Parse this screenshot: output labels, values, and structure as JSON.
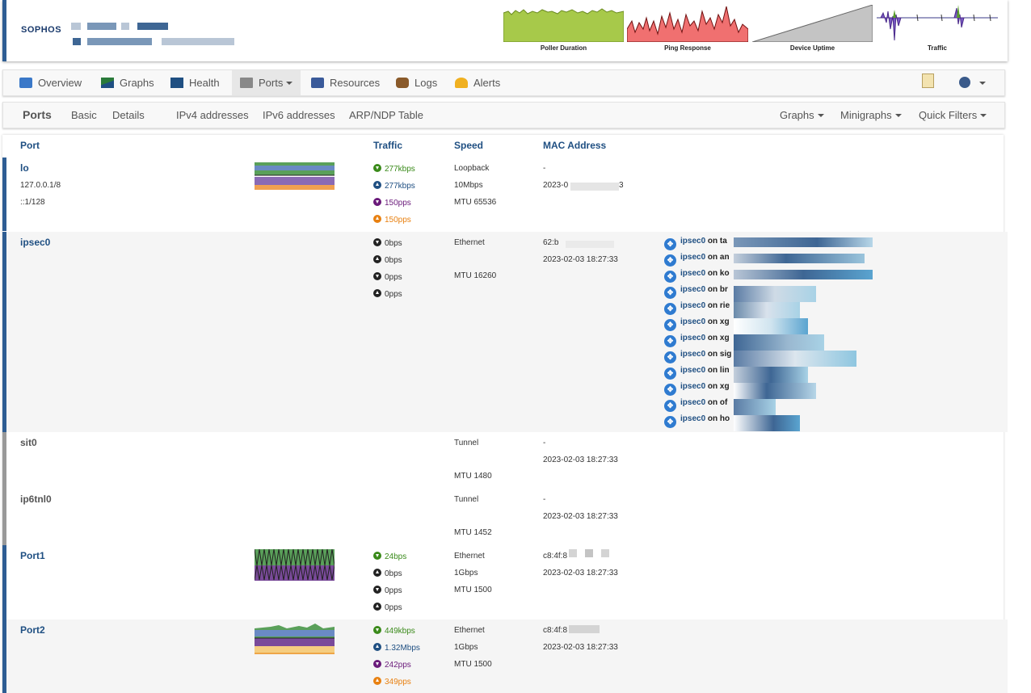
{
  "header": {
    "logo": "SOPHOS",
    "minigraphs": [
      "Poller Duration",
      "Ping Response",
      "Device Uptime",
      "Traffic"
    ]
  },
  "nav": {
    "overview": "Overview",
    "graphs": "Graphs",
    "health": "Health",
    "ports": "Ports",
    "resources": "Resources",
    "logs": "Logs",
    "alerts": "Alerts"
  },
  "subnav": {
    "ports": "Ports",
    "basic": "Basic",
    "details": "Details",
    "ipv4": "IPv4 addresses",
    "ipv6": "IPv6 addresses",
    "arp": "ARP/NDP Table",
    "graphs": "Graphs",
    "minigraphs": "Minigraphs",
    "quickfilters": "Quick Filters"
  },
  "table": {
    "headers": {
      "port": "Port",
      "traffic": "Traffic",
      "speed": "Speed",
      "mac": "MAC Address"
    },
    "rows": [
      {
        "name": "lo",
        "sub1": "127.0.0.1/8",
        "sub2": "::1/128",
        "traffic": [
          "277kbps",
          "277kbps",
          "150pps",
          "150pps"
        ],
        "speed": [
          "Loopback",
          "10Mbps",
          "MTU 65536"
        ],
        "mac": [
          "-",
          "2023-0",
          "3"
        ]
      },
      {
        "name": "ipsec0",
        "traffic": [
          "0bps",
          "0bps",
          "0pps",
          "0pps"
        ],
        "speed": [
          "Ethernet",
          "MTU 16260"
        ],
        "mac": [
          "62:b",
          "2023-02-03 18:27:33"
        ]
      },
      {
        "name": "sit0",
        "speed": [
          "Tunnel",
          "MTU 1480"
        ],
        "mac": [
          "-",
          "2023-02-03 18:27:33"
        ]
      },
      {
        "name": "ip6tnl0",
        "speed": [
          "Tunnel",
          "MTU 1452"
        ],
        "mac": [
          "-",
          "2023-02-03 18:27:33"
        ]
      },
      {
        "name": "Port1",
        "traffic": [
          "24bps",
          "0bps",
          "0pps",
          "0pps"
        ],
        "speed": [
          "Ethernet",
          "1Gbps",
          "MTU 1500"
        ],
        "mac": [
          "c8:4f:8",
          "2023-02-03 18:27:33"
        ]
      },
      {
        "name": "Port2",
        "traffic": [
          "449kbps",
          "1.32Mbps",
          "242pps",
          "349pps"
        ],
        "speed": [
          "Ethernet",
          "1Gbps",
          "MTU 1500"
        ],
        "mac": [
          "c8:4f:8",
          "2023-02-03 18:27:33"
        ]
      }
    ],
    "ipsec_links": [
      {
        "iface": "ipsec0",
        "on": "on ta"
      },
      {
        "iface": "ipsec0",
        "on": "on an"
      },
      {
        "iface": "ipsec0",
        "on": "on ko"
      },
      {
        "iface": "ipsec0",
        "on": "on br"
      },
      {
        "iface": "ipsec0",
        "on": "on rie"
      },
      {
        "iface": "ipsec0",
        "on": "on xg"
      },
      {
        "iface": "ipsec0",
        "on": "on xg"
      },
      {
        "iface": "ipsec0",
        "on": "on sig"
      },
      {
        "iface": "ipsec0",
        "on": "on lin"
      },
      {
        "iface": "ipsec0",
        "on": "on xg"
      },
      {
        "iface": "ipsec0",
        "on": "on of"
      },
      {
        "iface": "ipsec0",
        "on": "on ho"
      }
    ]
  }
}
